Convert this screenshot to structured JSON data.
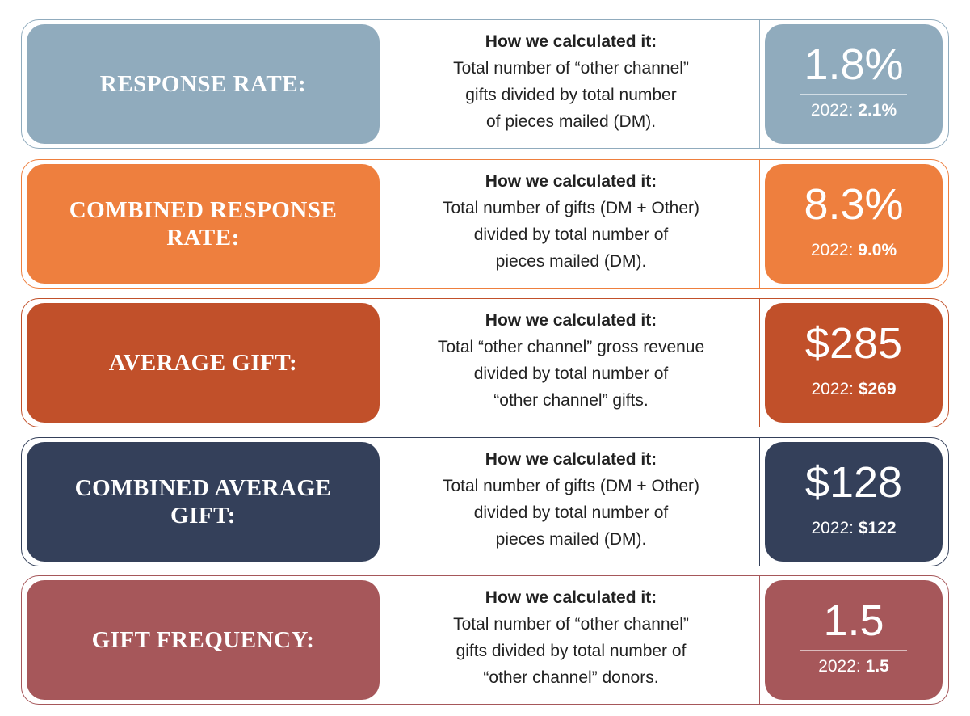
{
  "metrics": [
    {
      "label": "RESPONSE RATE:",
      "method_heading": "How we calculated it:",
      "method_lines": [
        "Total number of “other channel”",
        "gifts divided by total number",
        "of pieces mailed (DM)."
      ],
      "value": "1.8%",
      "prior_label": "2022:",
      "prior_value": "2.1%",
      "color": "#90abbd"
    },
    {
      "label": "COMBINED RESPONSE RATE:",
      "method_heading": "How we calculated it:",
      "method_lines": [
        "Total number of gifts (DM + Other)",
        "divided by total number of",
        "pieces mailed (DM)."
      ],
      "value": "8.3%",
      "prior_label": "2022:",
      "prior_value": "9.0%",
      "color": "#ee7f3e"
    },
    {
      "label": "AVERAGE GIFT:",
      "method_heading": "How we calculated it:",
      "method_lines": [
        "Total “other channel” gross revenue",
        "divided by total number of",
        "“other channel” gifts."
      ],
      "value": "$285",
      "prior_label": "2022:",
      "prior_value": "$269",
      "color": "#c1502a"
    },
    {
      "label": "COMBINED AVERAGE GIFT:",
      "method_heading": "How we calculated it:",
      "method_lines": [
        "Total number of gifts (DM + Other)",
        "divided by total number of",
        "pieces mailed (DM)."
      ],
      "value": "$128",
      "prior_label": "2022:",
      "prior_value": "$122",
      "color": "#34405a"
    },
    {
      "label": "GIFT FREQUENCY:",
      "method_heading": "How we calculated it:",
      "method_lines": [
        "Total number of “other channel”",
        "gifts divided by total number of",
        "“other channel” donors."
      ],
      "value": "1.5",
      "prior_label": "2022:",
      "prior_value": "1.5",
      "color": "#a6575a"
    }
  ]
}
